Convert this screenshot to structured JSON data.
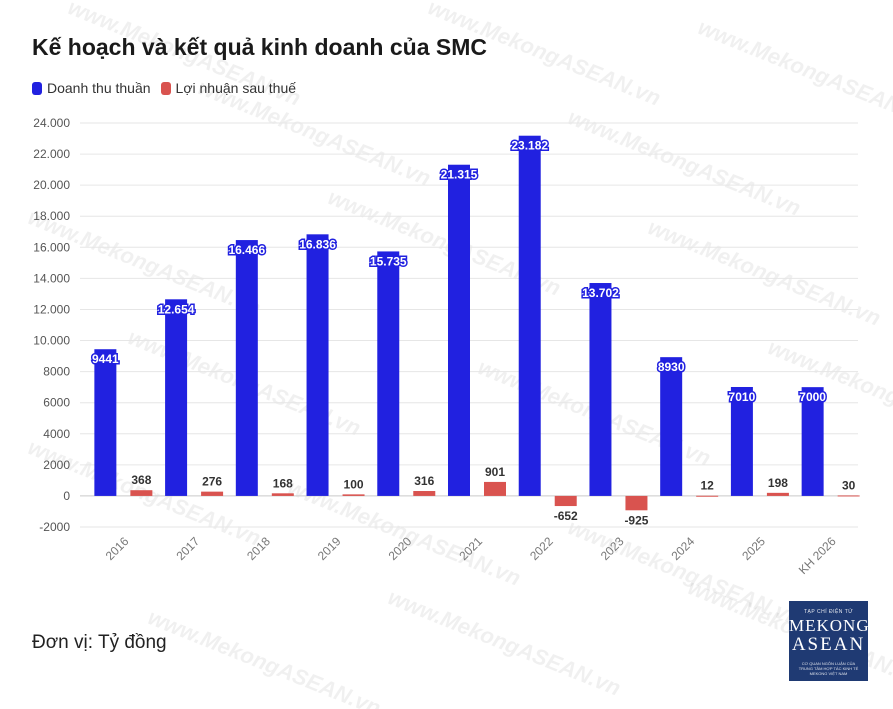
{
  "title": "Kế hoạch và kết quả kinh doanh của SMC",
  "legend": {
    "revenue_label": "Doanh thu thuần",
    "profit_label": "Lợi nhuận sau thuế"
  },
  "unit_note": "Đơn vị: Tỷ đồng",
  "logo": {
    "top": "TẠP CHÍ ĐIỆN TỬ",
    "line1": "MEKONG",
    "line2": "ASEAN",
    "bottom": "CƠ QUAN NGÔN LUẬN CỦA TRUNG TÂM HỢP TÁC KINH TẾ MEKONG VIỆT NAM"
  },
  "watermark": "www.MekongASEAN.vn",
  "colors": {
    "revenue": "#2121e0",
    "profit": "#d9534f",
    "grid": "#e6e6e6"
  },
  "chart_data": {
    "type": "bar",
    "categories": [
      "2016",
      "2017",
      "2018",
      "2019",
      "2020",
      "2021",
      "2022",
      "2023",
      "2024",
      "2025",
      "KH 2026"
    ],
    "ylim": [
      -2000,
      24000
    ],
    "yticks": [
      -2000,
      0,
      2000,
      4000,
      6000,
      8000,
      10000,
      12000,
      14000,
      16000,
      18000,
      20000,
      22000,
      24000
    ],
    "ytick_labels": [
      "-2000",
      "0",
      "2000",
      "4000",
      "6000",
      "8000",
      "10.000",
      "12.000",
      "14.000",
      "16.000",
      "18.000",
      "20.000",
      "22.000",
      "24.000"
    ],
    "grid": true,
    "legend_position": "top-left",
    "series": [
      {
        "name": "Doanh thu thuần",
        "values": [
          9441,
          12654,
          16466,
          16836,
          15735,
          21315,
          23182,
          13702,
          8930,
          7010,
          7000
        ],
        "labels": [
          "9441",
          "12.654",
          "16.466",
          "16.836",
          "15.735",
          "21.315",
          "23.182",
          "13.702",
          "8930",
          "7010",
          "7000"
        ]
      },
      {
        "name": "Lợi nhuận sau thuế",
        "values": [
          368,
          276,
          168,
          100,
          316,
          901,
          -652,
          -925,
          12,
          198,
          30
        ],
        "labels": [
          "368",
          "276",
          "168",
          "100",
          "316",
          "901",
          "-652",
          "-925",
          "12",
          "198",
          "30"
        ]
      }
    ]
  }
}
